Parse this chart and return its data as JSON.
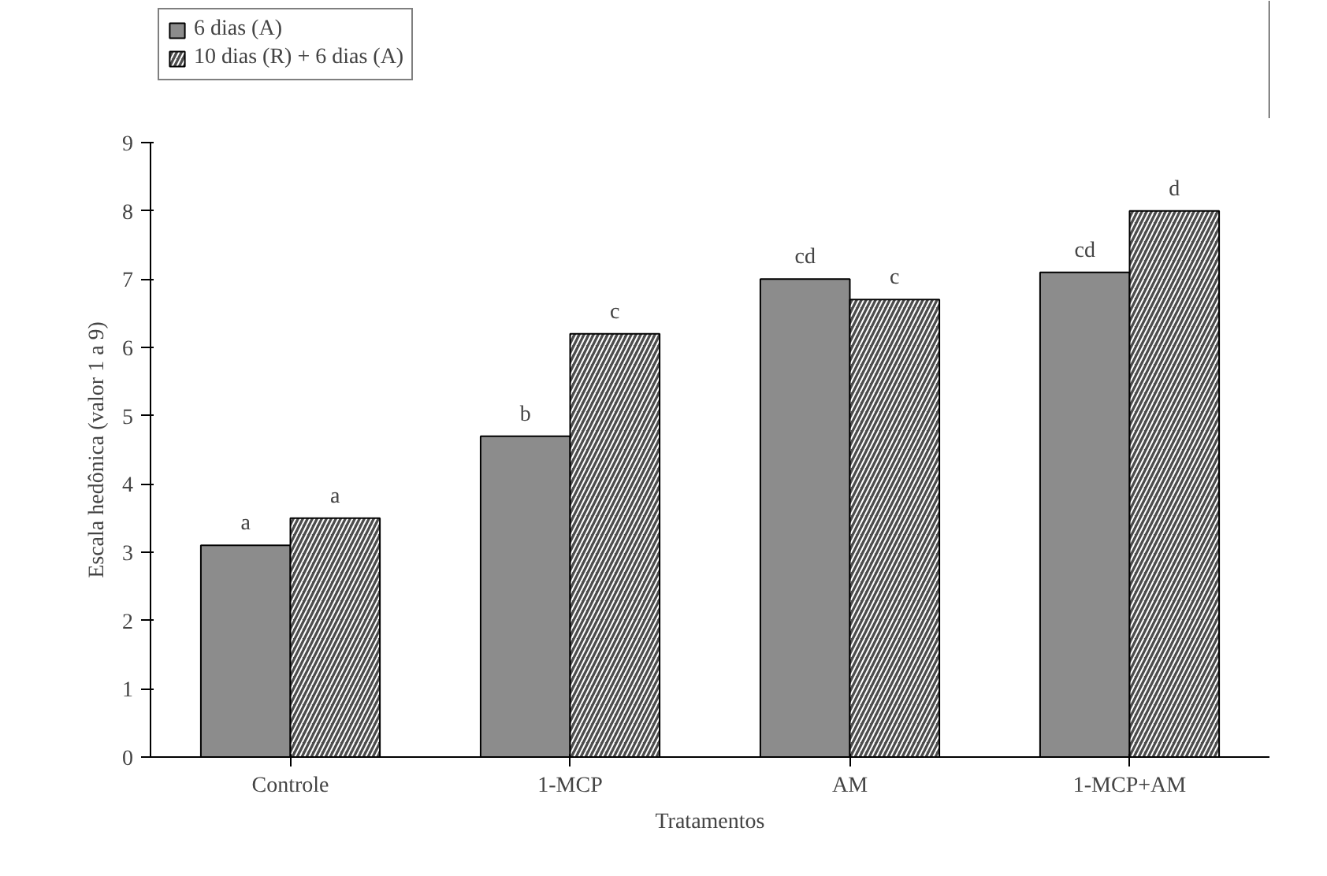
{
  "chart_data": {
    "type": "bar",
    "xlabel": "Tratamentos",
    "ylabel": "Escala hedônica (valor 1 a 9)",
    "categories": [
      "Controle",
      "1-MCP",
      "AM",
      "1-MCP+AM"
    ],
    "series": [
      {
        "name": "6 dias (A)",
        "color": "#8c8c8c",
        "values": [
          3.1,
          4.7,
          7.0,
          7.1
        ],
        "value_labels": [
          "a",
          "b",
          "cd",
          "cd"
        ]
      },
      {
        "name": "10 dias (R) + 6 dias (A)",
        "color": "#4d4d4d",
        "values": [
          3.5,
          6.2,
          6.7,
          8.0
        ],
        "value_labels": [
          "a",
          "c",
          "c",
          "d"
        ]
      }
    ],
    "ylim": [
      0,
      9
    ],
    "yticks": [
      0,
      1,
      2,
      3,
      4,
      5,
      6,
      7,
      8,
      9
    ],
    "grid": false,
    "legend": "top left"
  }
}
